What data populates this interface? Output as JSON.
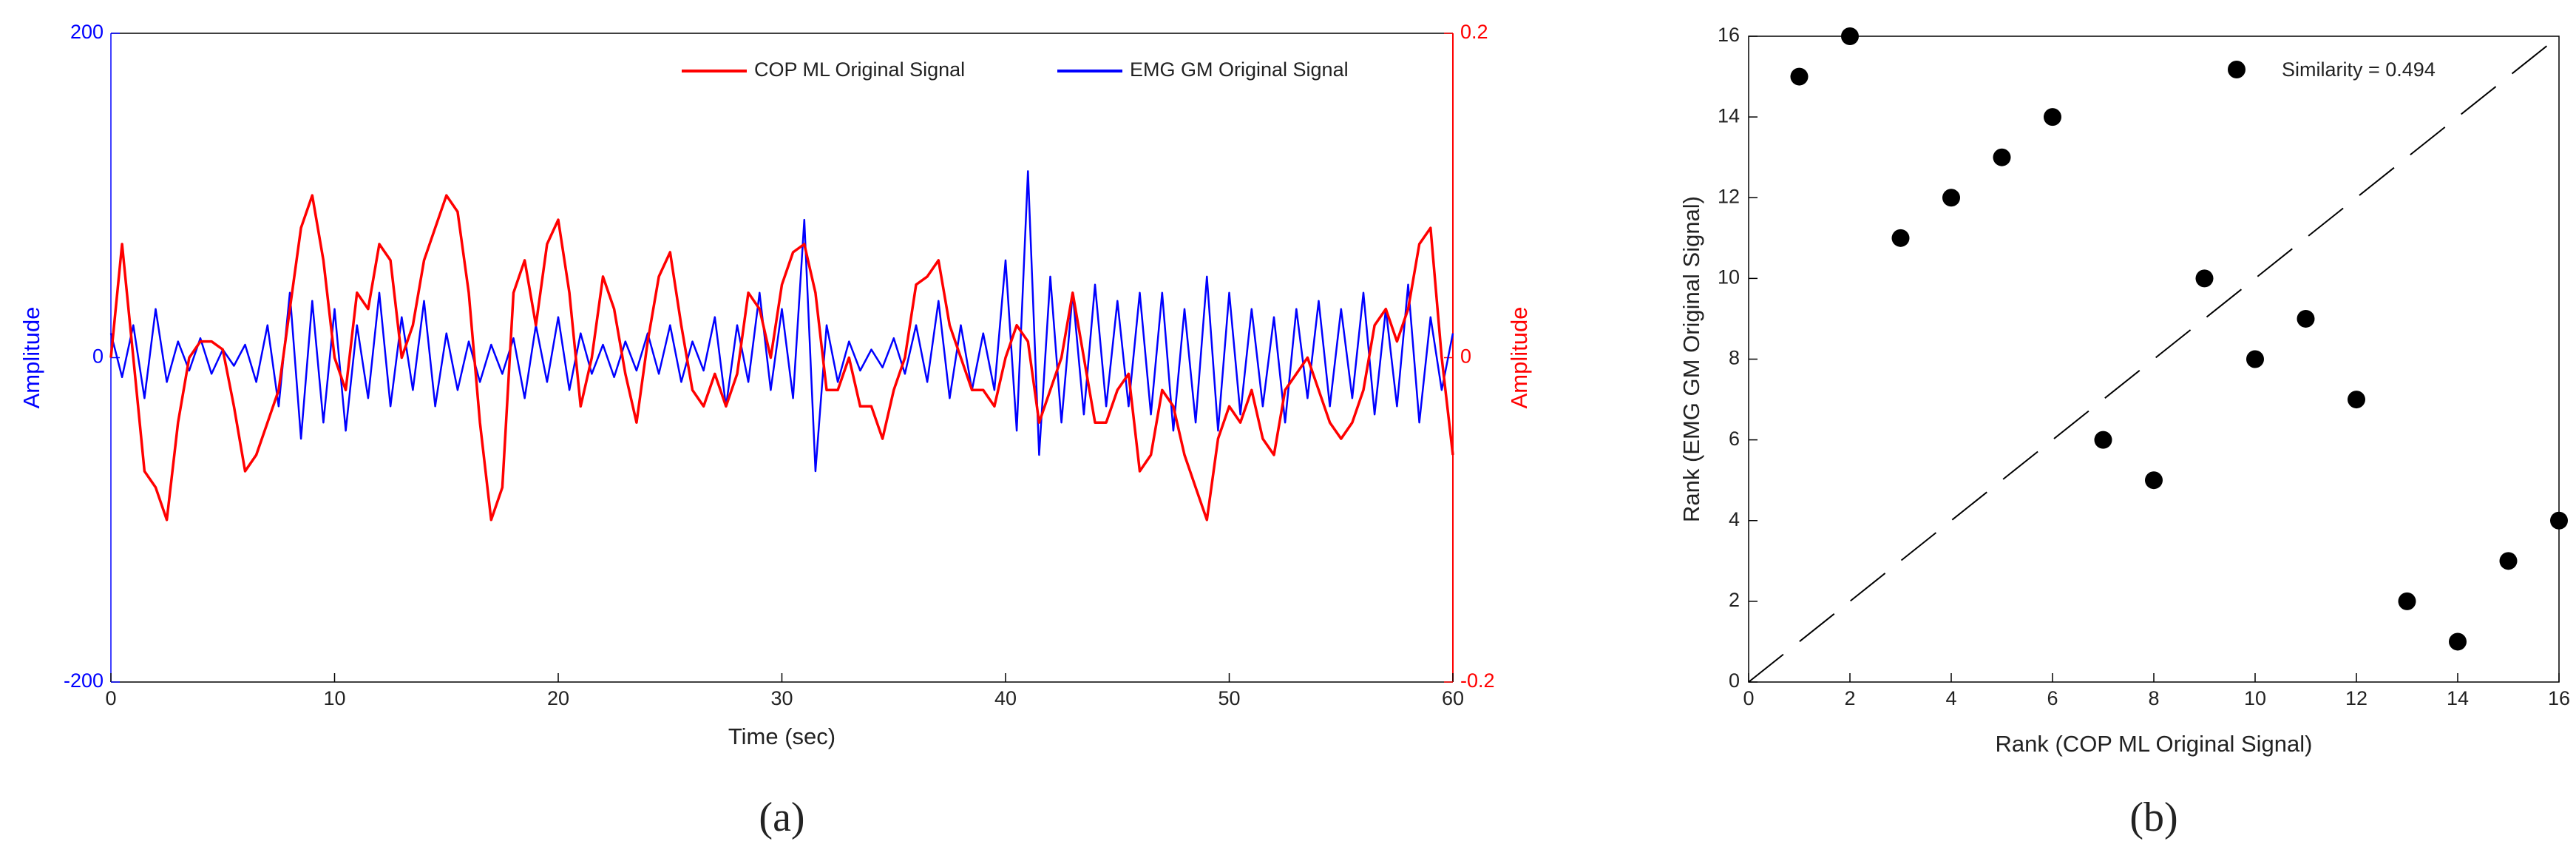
{
  "chart_data": [
    {
      "type": "line",
      "panel_label": "(a)",
      "xlabel": "Time (sec)",
      "ylabel": "Amplitude",
      "y2label": "Amplitude",
      "xlim": [
        0,
        60
      ],
      "xticks": [
        0,
        10,
        20,
        30,
        40,
        50,
        60
      ],
      "ylim": [
        -200,
        200
      ],
      "yticks": [
        -200,
        0,
        200
      ],
      "y_color": "#0000ff",
      "y2lim": [
        -0.2,
        0.2
      ],
      "y2ticks": [
        -0.2,
        0,
        0.2
      ],
      "y2_color": "#ff0000",
      "legend": "top-right",
      "grid": false,
      "x": [
        0,
        0.5,
        1,
        1.5,
        2,
        2.5,
        3,
        3.5,
        4,
        4.5,
        5,
        5.5,
        6,
        6.5,
        7,
        7.5,
        8,
        8.5,
        9,
        9.5,
        10,
        10.5,
        11,
        11.5,
        12,
        12.5,
        13,
        13.5,
        14,
        14.5,
        15,
        15.5,
        16,
        16.5,
        17,
        17.5,
        18,
        18.5,
        19,
        19.5,
        20,
        20.5,
        21,
        21.5,
        22,
        22.5,
        23,
        23.5,
        24,
        24.5,
        25,
        25.5,
        26,
        26.5,
        27,
        27.5,
        28,
        28.5,
        29,
        29.5,
        30,
        30.5,
        31,
        31.5,
        32,
        32.5,
        33,
        33.5,
        34,
        34.5,
        35,
        35.5,
        36,
        36.5,
        37,
        37.5,
        38,
        38.5,
        39,
        39.5,
        40,
        40.5,
        41,
        41.5,
        42,
        42.5,
        43,
        43.5,
        44,
        44.5,
        45,
        45.5,
        46,
        46.5,
        47,
        47.5,
        48,
        48.5,
        49,
        49.5,
        50,
        50.5,
        51,
        51.5,
        52,
        52.5,
        53,
        53.5,
        54,
        54.5,
        55,
        55.5,
        56,
        56.5,
        57,
        57.5,
        58,
        58.5,
        59,
        59.5,
        60
      ],
      "series": [
        {
          "name": "COP ML Original Signal",
          "color": "#ff0000",
          "axis": "y2",
          "values": [
            0,
            0.07,
            0,
            -0.07,
            -0.08,
            -0.1,
            -0.04,
            0,
            0.01,
            0.01,
            0.005,
            -0.03,
            -0.07,
            -0.06,
            -0.04,
            -0.02,
            0.03,
            0.08,
            0.1,
            0.06,
            0,
            -0.02,
            0.04,
            0.03,
            0.07,
            0.06,
            0,
            0.02,
            0.06,
            0.08,
            0.1,
            0.09,
            0.04,
            -0.04,
            -0.1,
            -0.08,
            0.04,
            0.06,
            0.02,
            0.07,
            0.085,
            0.04,
            -0.03,
            0,
            0.05,
            0.03,
            -0.01,
            -0.04,
            0.01,
            0.05,
            0.065,
            0.02,
            -0.02,
            -0.03,
            -0.01,
            -0.03,
            -0.01,
            0.04,
            0.03,
            0,
            0.045,
            0.065,
            0.07,
            0.04,
            -0.02,
            -0.02,
            0,
            -0.03,
            -0.03,
            -0.05,
            -0.02,
            0,
            0.045,
            0.05,
            0.06,
            0.02,
            0,
            -0.02,
            -0.02,
            -0.03,
            0,
            0.02,
            0.01,
            -0.04,
            -0.02,
            0,
            0.04,
            0,
            -0.04,
            -0.04,
            -0.02,
            -0.01,
            -0.07,
            -0.06,
            -0.02,
            -0.03,
            -0.06,
            -0.08,
            -0.1,
            -0.05,
            -0.03,
            -0.04,
            -0.02,
            -0.05,
            -0.06,
            -0.02,
            -0.01,
            0,
            -0.02,
            -0.04,
            -0.05,
            -0.04,
            -0.02,
            0.02,
            0.03,
            0.01,
            0.03,
            0.07,
            0.08,
            0,
            -0.06
          ]
        },
        {
          "name": "EMG GM Original Signal",
          "color": "#0000ff",
          "values": [
            15,
            -12,
            20,
            -25,
            30,
            -15,
            10,
            -8,
            12,
            -10,
            5,
            -5,
            8,
            -15,
            20,
            -30,
            40,
            -50,
            35,
            -40,
            30,
            -45,
            20,
            -25,
            40,
            -30,
            25,
            -20,
            35,
            -30,
            15,
            -20,
            10,
            -15,
            8,
            -10,
            12,
            -25,
            20,
            -15,
            25,
            -20,
            15,
            -10,
            8,
            -12,
            10,
            -8,
            15,
            -10,
            20,
            -15,
            10,
            -8,
            25,
            -30,
            20,
            -15,
            40,
            -20,
            30,
            -25,
            85,
            -70,
            20,
            -15,
            10,
            -8,
            5,
            -6,
            12,
            -10,
            20,
            -15,
            35,
            -25,
            20,
            -20,
            15,
            -20,
            60,
            -45,
            115,
            -60,
            50,
            -40,
            40,
            -35,
            45,
            -30,
            35,
            -30,
            40,
            -35,
            40,
            -45,
            30,
            -40,
            50,
            -45,
            40,
            -35,
            30,
            -30,
            25,
            -40,
            30,
            -25,
            35,
            -30,
            30,
            -25,
            40,
            -35,
            30,
            -30,
            45,
            -40,
            25,
            -20,
            15
          ]
        }
      ]
    },
    {
      "type": "scatter",
      "panel_label": "(b)",
      "xlabel": "Rank (COP ML Original Signal)",
      "ylabel": "Rank (EMG GM Original Signal)",
      "xlim": [
        0,
        16
      ],
      "xticks": [
        0,
        2,
        4,
        6,
        8,
        10,
        12,
        14,
        16
      ],
      "ylim": [
        0,
        16
      ],
      "yticks": [
        0,
        2,
        4,
        6,
        8,
        10,
        12,
        14,
        16
      ],
      "legend": "top-right",
      "grid": false,
      "reference_line": {
        "from": [
          0,
          0
        ],
        "to": [
          16,
          16
        ],
        "dashed": true,
        "color": "#000000"
      },
      "series": [
        {
          "name": "Similarity = 0.494",
          "color": "#000000",
          "x": [
            1,
            2,
            3,
            4,
            5,
            6,
            7,
            8,
            9,
            10,
            11,
            12,
            13,
            14,
            15,
            16
          ],
          "values": [
            15,
            16,
            11,
            12,
            13,
            14,
            6,
            5,
            10,
            8,
            9,
            7,
            2,
            1,
            3,
            4
          ]
        }
      ]
    }
  ]
}
